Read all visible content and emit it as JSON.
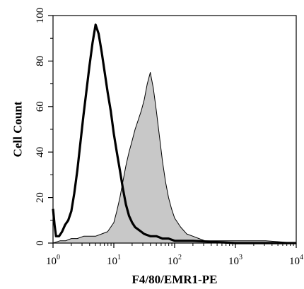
{
  "chart_data": {
    "type": "area",
    "title": "",
    "xlabel": "F4/80/EMR1-PE",
    "ylabel": "Cell Count",
    "x_scale": "log",
    "xlim": [
      1,
      10000
    ],
    "ylim": [
      0,
      100
    ],
    "x_ticks": [
      {
        "value": 1,
        "base": "10",
        "exp": "0"
      },
      {
        "value": 10,
        "base": "10",
        "exp": "1"
      },
      {
        "value": 100,
        "base": "10",
        "exp": "2"
      },
      {
        "value": 1000,
        "base": "10",
        "exp": "3"
      },
      {
        "value": 10000,
        "base": "10",
        "exp": "4"
      }
    ],
    "y_ticks": [
      "0",
      "20",
      "40",
      "60",
      "80",
      "100"
    ],
    "grid": false,
    "legend": "none",
    "series": [
      {
        "style": "filled-gray-thin-outline",
        "fill": "#c8c8c8",
        "stroke": "#000000",
        "points": [
          [
            1.0,
            0
          ],
          [
            1.3,
            1
          ],
          [
            1.6,
            1
          ],
          [
            2.0,
            2
          ],
          [
            2.5,
            2
          ],
          [
            3.2,
            3
          ],
          [
            4.0,
            3
          ],
          [
            5.0,
            3
          ],
          [
            6.3,
            4
          ],
          [
            7.9,
            5
          ],
          [
            10.0,
            9
          ],
          [
            11.2,
            14
          ],
          [
            12.6,
            20
          ],
          [
            14.1,
            27
          ],
          [
            15.8,
            34
          ],
          [
            17.8,
            40
          ],
          [
            20.0,
            45
          ],
          [
            22.4,
            50
          ],
          [
            25.1,
            54
          ],
          [
            28.2,
            58
          ],
          [
            31.6,
            63
          ],
          [
            35.5,
            70
          ],
          [
            39.8,
            75
          ],
          [
            44.7,
            68
          ],
          [
            50.1,
            58
          ],
          [
            56.2,
            47
          ],
          [
            63.1,
            36
          ],
          [
            70.8,
            27
          ],
          [
            79.4,
            20
          ],
          [
            89.1,
            15
          ],
          [
            100,
            11
          ],
          [
            126,
            7
          ],
          [
            158,
            4
          ],
          [
            200,
            3
          ],
          [
            251,
            2
          ],
          [
            316,
            1
          ],
          [
            398,
            1
          ],
          [
            501,
            1
          ],
          [
            1000,
            1
          ],
          [
            3162,
            1
          ],
          [
            10000,
            0
          ]
        ]
      },
      {
        "style": "thick-black-line",
        "fill": "none",
        "stroke": "#000000",
        "points": [
          [
            1.0,
            15
          ],
          [
            1.06,
            8
          ],
          [
            1.12,
            3
          ],
          [
            1.26,
            3
          ],
          [
            1.41,
            5
          ],
          [
            1.58,
            8
          ],
          [
            1.78,
            10
          ],
          [
            2.0,
            14
          ],
          [
            2.24,
            22
          ],
          [
            2.51,
            32
          ],
          [
            2.82,
            44
          ],
          [
            3.16,
            56
          ],
          [
            3.55,
            67
          ],
          [
            3.98,
            78
          ],
          [
            4.47,
            88
          ],
          [
            5.01,
            96
          ],
          [
            5.62,
            92
          ],
          [
            6.31,
            84
          ],
          [
            7.08,
            75
          ],
          [
            7.94,
            66
          ],
          [
            8.91,
            58
          ],
          [
            10.0,
            48
          ],
          [
            11.2,
            40
          ],
          [
            12.6,
            32
          ],
          [
            14.1,
            24
          ],
          [
            15.8,
            17
          ],
          [
            17.8,
            12
          ],
          [
            20.0,
            9
          ],
          [
            22.4,
            7
          ],
          [
            25.1,
            6
          ],
          [
            28.2,
            5
          ],
          [
            31.6,
            4
          ],
          [
            39.8,
            3
          ],
          [
            50.1,
            3
          ],
          [
            63.1,
            2
          ],
          [
            79.4,
            2
          ],
          [
            100,
            1
          ],
          [
            200,
            1
          ],
          [
            1000,
            0
          ],
          [
            10000,
            0
          ]
        ]
      }
    ]
  }
}
